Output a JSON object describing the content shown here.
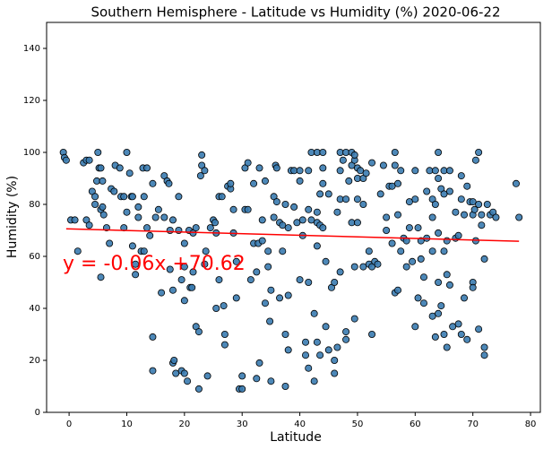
{
  "chart_data": {
    "type": "scatter",
    "title": "Southern Hemisphere - Latitude vs Humidity (%) 2020-06-22",
    "x_label": "Latitude",
    "y_label": "Humidity (%)",
    "annotation": "y = -0.06x +70.62",
    "xlim": [
      -3.9,
      81.7
    ],
    "ylim": [
      0,
      150
    ],
    "xticks": [
      0,
      10,
      20,
      30,
      40,
      50,
      60,
      70,
      80
    ],
    "yticks": [
      0,
      20,
      40,
      60,
      80,
      100,
      120,
      140
    ],
    "series": [
      {
        "color": "#3a7bb0",
        "edge_color": "#000000",
        "x": [
          -1,
          -0.8,
          -0.5,
          0.3,
          1,
          1.5,
          2.5,
          3,
          3.5,
          3,
          3.5,
          4,
          4.5,
          5,
          4.8,
          5.2,
          5.5,
          5.8,
          5.5,
          5.8,
          6,
          5.5,
          4.5,
          6.5,
          7,
          7.3,
          7.8,
          8,
          8.8,
          9,
          9.5,
          9.5,
          10,
          10,
          10.5,
          10.8,
          11,
          11,
          11.5,
          11.5,
          12,
          12,
          12.5,
          12.8,
          13,
          13.5,
          13.5,
          14,
          13,
          14.5,
          14.5,
          14.5,
          15,
          15.5,
          16,
          16.5,
          16.5,
          17,
          17.3,
          17.5,
          17.5,
          18,
          18,
          18,
          18.2,
          18.5,
          19,
          19,
          19.5,
          19.5,
          20,
          20,
          20,
          20.5,
          20,
          20.8,
          21,
          21.3,
          21.5,
          21.5,
          22,
          22,
          22.5,
          22.5,
          22.8,
          23,
          23,
          23.5,
          23.5,
          23.7,
          24,
          24.5,
          25,
          25.3,
          25.5,
          25.5,
          26,
          26,
          26.5,
          26.8,
          27,
          27,
          27.5,
          28,
          28,
          28.5,
          28.5,
          29,
          29,
          29.5,
          30,
          30,
          30.5,
          30.5,
          31,
          31,
          31.5,
          32,
          32,
          32.5,
          32.5,
          32.8,
          33,
          33,
          33.5,
          33.5,
          34,
          34,
          34.5,
          34.5,
          34.8,
          35,
          35,
          35.5,
          35.5,
          35.8,
          36,
          36,
          36.5,
          36.5,
          37,
          37,
          37.5,
          37.5,
          37.5,
          38,
          38,
          38,
          38.5,
          39,
          39,
          39.5,
          40,
          40,
          40,
          40.5,
          40.5,
          41,
          41,
          41.5,
          41.5,
          41.5,
          41.5,
          42,
          42,
          42.5,
          42.5,
          43,
          43,
          43,
          43,
          43,
          43.5,
          43.5,
          43.5,
          44,
          44,
          44,
          44,
          44.5,
          44.5,
          45,
          45,
          45.5,
          46,
          46,
          46,
          46.5,
          46.5,
          47,
          47,
          47,
          47,
          47.5,
          48,
          48,
          48,
          48,
          48.5,
          49,
          49,
          49,
          49.5,
          49.5,
          49.5,
          49.5,
          50,
          50,
          50,
          50,
          50.5,
          51,
          51,
          51,
          51.5,
          52,
          52,
          52.5,
          52.5,
          52.5,
          53,
          53.5,
          54,
          54.5,
          55,
          55,
          55.5,
          56,
          56,
          56.5,
          56.5,
          56.5,
          57,
          57,
          57,
          57.5,
          57.5,
          58,
          58.5,
          58.5,
          59,
          59,
          59.5,
          60,
          60,
          60,
          60.5,
          60.5,
          61,
          61,
          61.5,
          61.5,
          62,
          62,
          62.5,
          63,
          63,
          63,
          63,
          63.5,
          63.5,
          63.5,
          64,
          64,
          64,
          64,
          64,
          64.5,
          64.5,
          65,
          65,
          65,
          65,
          65.5,
          65.5,
          65.5,
          66,
          66,
          66,
          66.5,
          67,
          67,
          67.5,
          67.5,
          68,
          68,
          68,
          68.5,
          68.5,
          69,
          69,
          69.5,
          70,
          70,
          70.3,
          70,
          70,
          70.5,
          70.5,
          71,
          71,
          71,
          71.5,
          71.5,
          72,
          72,
          72,
          72.5,
          73,
          73.5,
          74,
          77.5,
          78
        ],
        "values": [
          100,
          98,
          97,
          74,
          74,
          62,
          96,
          97,
          97,
          74,
          72,
          85,
          80,
          100,
          89,
          94,
          94,
          89,
          78,
          79,
          76,
          52,
          83,
          71,
          65,
          86,
          85,
          95,
          94,
          83,
          83,
          71,
          77,
          100,
          92,
          83,
          83,
          64,
          53,
          57,
          75,
          79,
          62,
          94,
          83,
          94,
          71,
          68,
          62,
          88,
          29,
          16,
          75,
          78,
          46,
          91,
          75,
          89,
          88,
          70,
          55,
          74,
          47,
          19,
          20,
          15,
          70,
          83,
          51,
          16,
          65,
          56,
          15,
          12,
          43,
          70,
          48,
          48,
          54,
          69,
          71,
          33,
          9,
          31,
          91,
          99,
          95,
          93,
          57,
          62,
          14,
          71,
          74,
          73,
          69,
          40,
          51,
          83,
          83,
          41,
          30,
          26,
          87,
          86,
          88,
          78,
          69,
          58,
          44,
          9,
          9,
          14,
          78,
          94,
          78,
          96,
          51,
          88,
          65,
          54,
          13,
          65,
          19,
          94,
          66,
          74,
          89,
          42,
          56,
          62,
          35,
          47,
          12,
          75,
          83,
          95,
          94,
          81,
          73,
          44,
          62,
          72,
          80,
          10,
          30,
          45,
          24,
          71,
          93,
          93,
          79,
          73,
          51,
          93,
          89,
          74,
          68,
          22,
          27,
          93,
          78,
          50,
          17,
          100,
          74,
          12,
          38,
          100,
          77,
          73,
          64,
          27,
          84,
          72,
          22,
          100,
          94,
          88,
          71,
          58,
          33,
          84,
          24,
          48,
          50,
          15,
          20,
          25,
          77,
          54,
          100,
          93,
          82,
          97,
          82,
          100,
          28,
          31,
          89,
          100,
          95,
          73,
          97,
          99,
          56,
          36,
          94,
          90,
          82,
          73,
          93,
          56,
          80,
          90,
          92,
          62,
          57,
          96,
          56,
          30,
          58,
          57,
          84,
          95,
          75,
          70,
          87,
          87,
          65,
          100,
          95,
          46,
          47,
          88,
          76,
          93,
          62,
          67,
          56,
          66,
          81,
          71,
          58,
          93,
          82,
          33,
          71,
          44,
          59,
          66,
          52,
          42,
          67,
          85,
          93,
          75,
          62,
          82,
          37,
          80,
          29,
          93,
          100,
          90,
          50,
          69,
          38,
          86,
          41,
          93,
          84,
          62,
          30,
          66,
          53,
          25,
          93,
          85,
          49,
          33,
          67,
          77,
          68,
          34,
          30,
          82,
          91,
          76,
          44,
          28,
          87,
          81,
          81,
          76,
          78,
          50,
          48,
          97,
          66,
          100,
          32,
          80,
          76,
          72,
          59,
          25,
          22,
          80,
          76,
          77,
          75,
          88,
          75
        ]
      }
    ],
    "fit_line": {
      "color": "#ff0000",
      "x": [
        -0.5,
        78
      ],
      "values": [
        70.6,
        65.8
      ]
    }
  }
}
